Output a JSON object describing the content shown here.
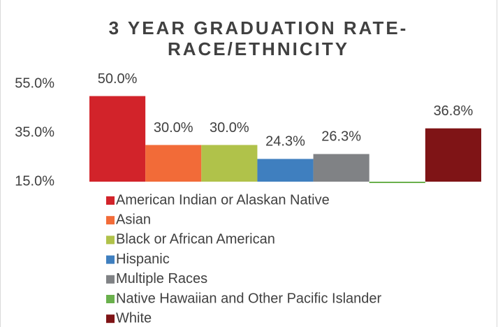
{
  "chart_data": {
    "type": "bar",
    "title": [
      "3 YEAR GRADUATION RATE-",
      "RACE/ETHNICITY"
    ],
    "categories": [
      null
    ],
    "series": [
      {
        "name": "American Indian or Alaskan Native",
        "color": "#d2232a",
        "values": [
          50.0
        ],
        "value_labels": [
          "50.0%"
        ]
      },
      {
        "name": "Asian",
        "color": "#f26b38",
        "values": [
          30.0
        ],
        "value_labels": [
          "30.0%"
        ]
      },
      {
        "name": "Black or African American",
        "color": "#b0c24a",
        "values": [
          30.0
        ],
        "value_labels": [
          "30.0%"
        ]
      },
      {
        "name": "Hispanic",
        "color": "#3f7fbf",
        "values": [
          24.3
        ],
        "value_labels": [
          "24.3%"
        ]
      },
      {
        "name": "Multiple Races",
        "color": "#808285",
        "values": [
          26.3
        ],
        "value_labels": [
          "26.3%"
        ]
      },
      {
        "name": "Native Hawaiian and Other Pacific Islander",
        "color": "#6ab04c",
        "values": [
          15.0
        ],
        "value_labels": [
          null
        ]
      },
      {
        "name": "White",
        "color": "#7f1416",
        "values": [
          36.8
        ],
        "value_labels": [
          "36.8%"
        ]
      }
    ],
    "ylim": [
      15,
      55
    ],
    "yticks": [
      {
        "value": 15,
        "label": "15.0%"
      },
      {
        "value": 35,
        "label": "35.0%"
      },
      {
        "value": 55,
        "label": "55.0%"
      }
    ],
    "grid": false,
    "legend": "bottom"
  }
}
